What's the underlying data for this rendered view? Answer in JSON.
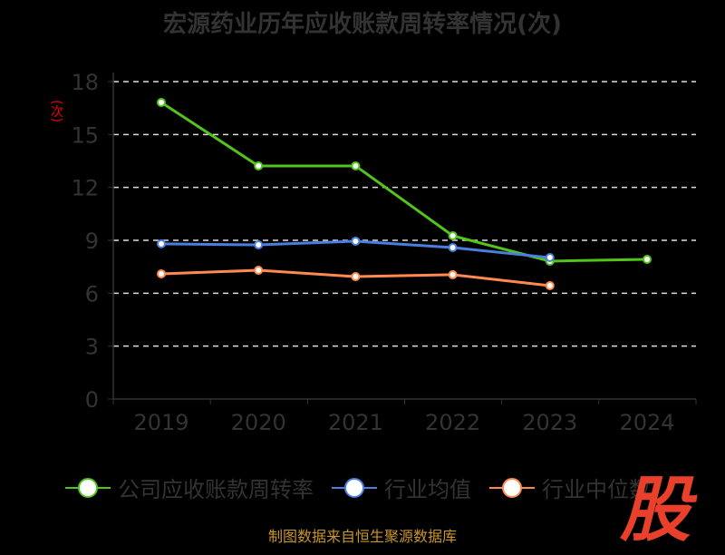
{
  "chart_data": {
    "type": "line",
    "title": "宏源药业历年应收账款周转率情况(次)",
    "ylabel": "(次)",
    "xlabel": "",
    "categories": [
      "2019",
      "2020",
      "2021",
      "2022",
      "2023",
      "2024"
    ],
    "ylim": [
      0,
      18
    ],
    "yticks": [
      0,
      3,
      6,
      9,
      12,
      15,
      18
    ],
    "grid": true,
    "legend_position": "bottom",
    "series": [
      {
        "name": "公司应收账款周转率",
        "color": "#52c41a",
        "values": [
          16.82,
          13.22,
          13.22,
          9.26,
          7.82,
          7.92
        ]
      },
      {
        "name": "行业均值",
        "color": "#4a7fe0",
        "values": [
          8.8,
          8.74,
          8.95,
          8.59,
          8.02,
          null
        ]
      },
      {
        "name": "行业中位数",
        "color": "#ff8a50",
        "values": [
          7.1,
          7.3,
          6.94,
          7.05,
          6.43,
          null
        ]
      }
    ]
  },
  "source": "制图数据来自恒生聚源数据库",
  "logo": "股"
}
